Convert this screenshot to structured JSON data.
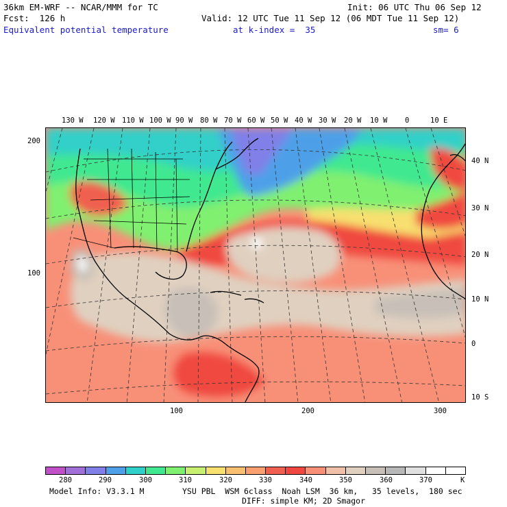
{
  "header": {
    "model_title": "36km EM-WRF -- NCAR/MMM for TC",
    "init": "Init: 06 UTC Thu 06 Sep 12",
    "forecast": "Fcst:  126 h",
    "valid": "Valid: 12 UTC Tue 11 Sep 12 (06 MDT Tue 11 Sep 12)",
    "field": "Equivalent potential temperature",
    "level": "at k-index =  35",
    "smoothing": "sm= 6"
  },
  "map": {
    "lon_labels": [
      "130 W",
      "120 W",
      "110 W",
      "100 W",
      "90 W",
      "80 W",
      "70 W",
      "60 W",
      "50 W",
      "40 W",
      "30 W",
      "20 W",
      "10 W",
      "0",
      "10 E"
    ],
    "lat_labels": [
      "40 N",
      "30 N",
      "20 N",
      "10 N",
      "0",
      "10 S"
    ],
    "grid_y_labels": [
      "200",
      "100"
    ],
    "grid_x_labels": [
      "100",
      "200",
      "300"
    ]
  },
  "colorbar": {
    "labels": [
      "280",
      "290",
      "300",
      "310",
      "320",
      "330",
      "340",
      "350",
      "360",
      "370"
    ],
    "unit": "K",
    "colors": [
      "#c050c8",
      "#a070d8",
      "#8080e8",
      "#4ea0e8",
      "#30d0c8",
      "#40e890",
      "#80f070",
      "#c8f070",
      "#f8e070",
      "#f8c070",
      "#f8a070",
      "#f06050",
      "#f04840",
      "#f89078",
      "#f0c0a8",
      "#e0d0c0",
      "#c8c0b8",
      "#b8b8b8",
      "#e0e0e0",
      "#ffffff",
      "#ffffff"
    ]
  },
  "footer": {
    "model_info": "Model Info: V3.3.1 M",
    "physics": "YSU PBL  WSM 6class  Noah LSM  36 km,   35 levels,  180 sec",
    "diffusion": "DIFF: simple KM; 2D Smagor"
  }
}
